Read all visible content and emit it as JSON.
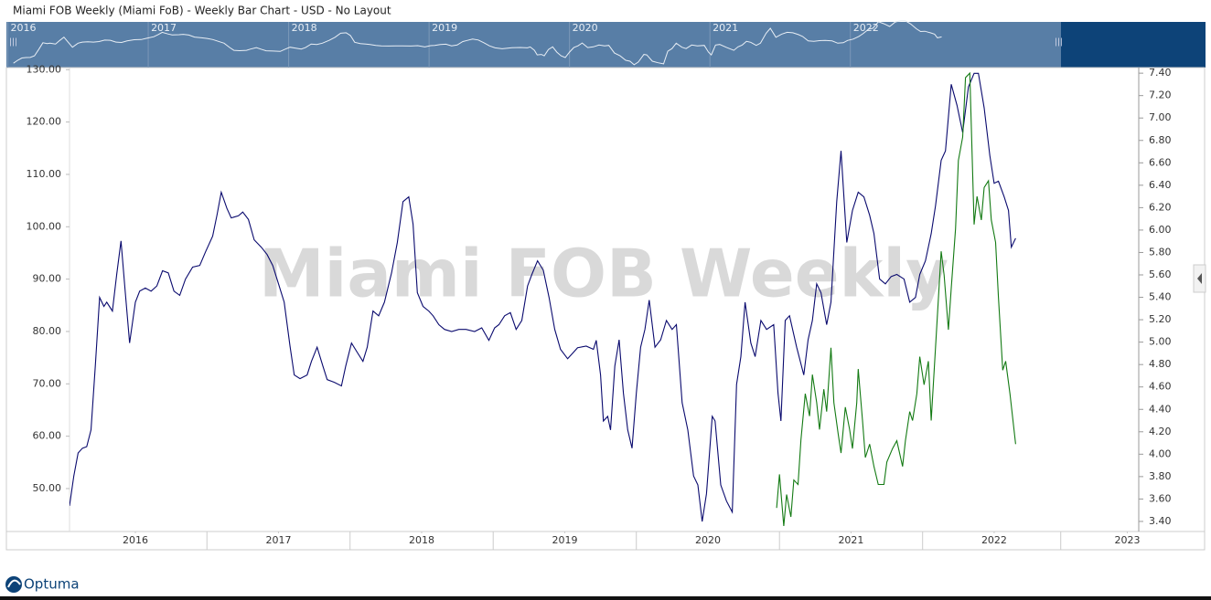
{
  "header": {
    "title": "Miami FOB Weekly (Miami FoB) - Weekly Bar Chart - USD - No Layout"
  },
  "navigator": {
    "xticks": [
      2016,
      2017,
      2018,
      2019,
      2020,
      2021,
      2022
    ],
    "xlim": [
      2015.99,
      2023.5
    ]
  },
  "footer": {
    "brand": "Optuma"
  },
  "chart_data": {
    "type": "line",
    "watermark": "Miami FOB Weekly",
    "xlim": [
      2016.04,
      2023.51
    ],
    "xticks": [
      {
        "value": 2016.5,
        "label": "2016"
      },
      {
        "value": 2017.5,
        "label": "2017"
      },
      {
        "value": 2018.5,
        "label": "2018"
      },
      {
        "value": 2019.5,
        "label": "2019"
      },
      {
        "value": 2020.5,
        "label": "2020"
      },
      {
        "value": 2021.5,
        "label": "2021"
      },
      {
        "value": 2022.5,
        "label": "2022"
      },
      {
        "value": 2023.43,
        "label": "2023"
      }
    ],
    "ylim": [
      41.8,
      130.4
    ],
    "yticks": [
      {
        "value": 50,
        "label": "50.00"
      },
      {
        "value": 60,
        "label": "60.00"
      },
      {
        "value": 70,
        "label": "70.00"
      },
      {
        "value": 80,
        "label": "80.00"
      },
      {
        "value": 90,
        "label": "90.00"
      },
      {
        "value": 100,
        "label": "100.00"
      },
      {
        "value": 110,
        "label": "110.00"
      },
      {
        "value": 120,
        "label": "120.00"
      },
      {
        "value": 130,
        "label": "130.00"
      }
    ],
    "y2lim": [
      3.31,
      7.45
    ],
    "y2ticks": [
      {
        "value": 3.4,
        "label": "3.40"
      },
      {
        "value": 3.6,
        "label": "3.60"
      },
      {
        "value": 3.8,
        "label": "3.80"
      },
      {
        "value": 4.0,
        "label": "4.00"
      },
      {
        "value": 4.2,
        "label": "4.20"
      },
      {
        "value": 4.4,
        "label": "4.40"
      },
      {
        "value": 4.6,
        "label": "4.60"
      },
      {
        "value": 4.8,
        "label": "4.80"
      },
      {
        "value": 5.0,
        "label": "5.00"
      },
      {
        "value": 5.2,
        "label": "5.20"
      },
      {
        "value": 5.4,
        "label": "5.40"
      },
      {
        "value": 5.6,
        "label": "5.60"
      },
      {
        "value": 5.8,
        "label": "5.80"
      },
      {
        "value": 6.0,
        "label": "6.00"
      },
      {
        "value": 6.2,
        "label": "6.20"
      },
      {
        "value": 6.4,
        "label": "6.40"
      },
      {
        "value": 6.6,
        "label": "6.60"
      },
      {
        "value": 6.8,
        "label": "6.80"
      },
      {
        "value": 7.0,
        "label": "7.00"
      },
      {
        "value": 7.2,
        "label": "7.20"
      },
      {
        "value": 7.4,
        "label": "7.40"
      }
    ],
    "series": [
      {
        "color": "#0a0a6e",
        "axis": "y",
        "x": [
          2016.04,
          2016.07,
          2016.1,
          2016.13,
          2016.16,
          2016.19,
          2016.22,
          2016.25,
          2016.28,
          2016.3,
          2016.34,
          2016.37,
          2016.4,
          2016.43,
          2016.46,
          2016.5,
          2016.53,
          2016.57,
          2016.61,
          2016.65,
          2016.69,
          2016.73,
          2016.77,
          2016.81,
          2016.85,
          2016.9,
          2016.95,
          2016.99,
          2017.04,
          2017.07,
          2017.1,
          2017.14,
          2017.17,
          2017.22,
          2017.25,
          2017.29,
          2017.33,
          2017.38,
          2017.42,
          2017.46,
          2017.5,
          2017.54,
          2017.58,
          2017.61,
          2017.65,
          2017.7,
          2017.73,
          2017.77,
          2017.81,
          2017.84,
          2017.89,
          2017.94,
          2017.97,
          2018.01,
          2018.05,
          2018.09,
          2018.12,
          2018.16,
          2018.2,
          2018.24,
          2018.29,
          2018.33,
          2018.37,
          2018.41,
          2018.44,
          2018.47,
          2018.51,
          2018.55,
          2018.58,
          2018.62,
          2018.66,
          2018.71,
          2018.76,
          2018.81,
          2018.87,
          2018.92,
          2018.97,
          2019.01,
          2019.04,
          2019.08,
          2019.12,
          2019.16,
          2019.2,
          2019.24,
          2019.27,
          2019.31,
          2019.35,
          2019.39,
          2019.43,
          2019.47,
          2019.52,
          2019.56,
          2019.59,
          2019.65,
          2019.7,
          2019.72,
          2019.75,
          2019.77,
          2019.8,
          2019.82,
          2019.85,
          2019.88,
          2019.91,
          2019.94,
          2019.97,
          2020.0,
          2020.03,
          2020.06,
          2020.09,
          2020.13,
          2020.17,
          2020.21,
          2020.25,
          2020.28,
          2020.32,
          2020.36,
          2020.4,
          2020.43,
          2020.46,
          2020.49,
          2020.53,
          2020.55,
          2020.59,
          2020.63,
          2020.67,
          2020.7,
          2020.73,
          2020.76,
          2020.8,
          2020.83,
          2020.87,
          2020.91,
          2020.96,
          2020.99,
          2021.01,
          2021.04,
          2021.07,
          2021.12,
          2021.17,
          2021.2,
          2021.23,
          2021.26,
          2021.29,
          2021.33,
          2021.36,
          2021.4,
          2021.43,
          2021.47,
          2021.51,
          2021.55,
          2021.59,
          2021.63,
          2021.66,
          2021.7,
          2021.74,
          2021.78,
          2021.82,
          2021.87,
          2021.91,
          2021.95,
          2021.98,
          2022.02,
          2022.06,
          2022.09,
          2022.13,
          2022.16,
          2022.2,
          2022.24,
          2022.28,
          2022.32,
          2022.36,
          2022.39,
          2022.43,
          2022.47,
          2022.5,
          2022.53,
          2022.57,
          2022.6,
          2022.62,
          2022.65
        ],
        "values": [
          46.7,
          52.4,
          56.8,
          57.7,
          58.0,
          61.2,
          73.4,
          86.5,
          84.8,
          85.6,
          83.9,
          90.9,
          97.3,
          87.4,
          77.8,
          85.6,
          87.7,
          88.3,
          87.7,
          88.7,
          91.6,
          91.2,
          87.7,
          86.9,
          90.0,
          92.3,
          92.6,
          95.2,
          98.2,
          102.2,
          106.6,
          103.5,
          101.7,
          102.1,
          102.8,
          101.4,
          97.5,
          96.1,
          94.7,
          92.6,
          89.1,
          85.6,
          77.3,
          71.7,
          71.0,
          71.7,
          74.3,
          77.0,
          73.4,
          70.8,
          70.3,
          69.6,
          73.4,
          77.8,
          76.0,
          74.3,
          77.0,
          83.9,
          83.0,
          85.6,
          91.2,
          97.0,
          104.8,
          105.7,
          100.5,
          87.4,
          84.8,
          83.9,
          83.0,
          81.3,
          80.4,
          80.0,
          80.4,
          80.4,
          80.0,
          80.7,
          78.3,
          80.7,
          81.3,
          83.0,
          83.6,
          80.4,
          82.1,
          88.7,
          90.9,
          93.5,
          91.7,
          86.5,
          80.4,
          76.6,
          74.8,
          76.0,
          76.9,
          77.2,
          76.6,
          78.3,
          71.7,
          62.9,
          63.8,
          61.2,
          73.4,
          78.4,
          68.2,
          61.2,
          57.7,
          68.2,
          77.0,
          80.4,
          86.0,
          77.0,
          78.4,
          82.1,
          80.4,
          81.3,
          66.4,
          61.2,
          52.4,
          50.7,
          43.7,
          49.0,
          63.8,
          62.9,
          50.7,
          47.6,
          45.5,
          69.9,
          75.2,
          85.6,
          77.8,
          75.2,
          82.1,
          80.4,
          81.3,
          68.2,
          62.9,
          82.1,
          83.0,
          77.0,
          71.7,
          78.4,
          82.1,
          89.1,
          87.4,
          81.3,
          85.6,
          104.8,
          114.5,
          97.0,
          103.1,
          106.6,
          105.7,
          102.2,
          98.7,
          90.0,
          89.1,
          90.5,
          90.9,
          90.0,
          85.6,
          86.5,
          90.9,
          93.5,
          98.7,
          104.0,
          112.7,
          114.5,
          127.2,
          123.2,
          118.0,
          126.7,
          129.3,
          129.3,
          122.7,
          113.6,
          108.3,
          108.7,
          105.7,
          103.1,
          96.1,
          97.8
        ]
      },
      {
        "color": "#137a13",
        "axis": "y2",
        "x": [
          2020.98,
          2021.0,
          2021.03,
          2021.05,
          2021.08,
          2021.1,
          2021.13,
          2021.15,
          2021.18,
          2021.21,
          2021.23,
          2021.26,
          2021.28,
          2021.31,
          2021.33,
          2021.36,
          2021.38,
          2021.41,
          2021.43,
          2021.46,
          2021.49,
          2021.51,
          2021.54,
          2021.55,
          2021.58,
          2021.6,
          2021.63,
          2021.66,
          2021.69,
          2021.73,
          2021.75,
          2021.79,
          2021.82,
          2021.86,
          2021.88,
          2021.91,
          2021.93,
          2021.96,
          2021.98,
          2022.01,
          2022.04,
          2022.06,
          2022.09,
          2022.13,
          2022.15,
          2022.18,
          2022.2,
          2022.23,
          2022.25,
          2022.28,
          2022.3,
          2022.33,
          2022.36,
          2022.38,
          2022.41,
          2022.43,
          2022.46,
          2022.48,
          2022.51,
          2022.53,
          2022.56,
          2022.58,
          2022.61,
          2022.65
        ],
        "values": [
          3.52,
          3.82,
          3.36,
          3.64,
          3.44,
          3.77,
          3.73,
          4.13,
          4.54,
          4.34,
          4.71,
          4.46,
          4.22,
          4.58,
          4.38,
          4.95,
          4.46,
          4.18,
          4.01,
          4.42,
          4.22,
          4.05,
          4.46,
          4.76,
          4.3,
          3.97,
          4.09,
          3.89,
          3.73,
          3.73,
          3.93,
          4.05,
          4.12,
          3.89,
          4.12,
          4.38,
          4.3,
          4.54,
          4.87,
          4.62,
          4.83,
          4.3,
          4.95,
          5.81,
          5.6,
          5.11,
          5.48,
          6.01,
          6.62,
          6.83,
          7.36,
          7.4,
          6.05,
          6.3,
          6.09,
          6.38,
          6.44,
          6.09,
          5.89,
          5.4,
          4.75,
          4.83,
          4.54,
          4.09
        ]
      }
    ]
  }
}
